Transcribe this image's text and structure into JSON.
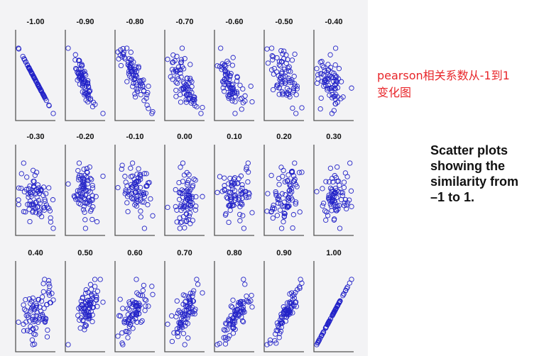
{
  "annotation": {
    "chinese_note_line1": "pearson相关系数从-1到1",
    "chinese_note_line2": "变化图"
  },
  "caption": {
    "line1": "Scatter plots",
    "line2": "showing the",
    "line3": "similarity from",
    "line4": "–1 to 1."
  },
  "colors": {
    "point": "#2424c8",
    "note": "#e8262a",
    "panel_background": "#f3f3f5"
  },
  "chart_data": {
    "type": "scatter",
    "layout": "small-multiples grid, 3 rows x 7 columns",
    "axes": "no tick labels",
    "point_marker": "open circle",
    "grid": false,
    "panels": [
      {
        "title": "-1.00",
        "correlation": -1.0
      },
      {
        "title": "-0.90",
        "correlation": -0.9
      },
      {
        "title": "-0.80",
        "correlation": -0.8
      },
      {
        "title": "-0.70",
        "correlation": -0.7
      },
      {
        "title": "-0.60",
        "correlation": -0.6
      },
      {
        "title": "-0.50",
        "correlation": -0.5
      },
      {
        "title": "-0.40",
        "correlation": -0.4
      },
      {
        "title": "-0.30",
        "correlation": -0.3
      },
      {
        "title": "-0.20",
        "correlation": -0.2
      },
      {
        "title": "-0.10",
        "correlation": -0.1
      },
      {
        "title": "0.00",
        "correlation": 0.0
      },
      {
        "title": "0.10",
        "correlation": 0.1
      },
      {
        "title": "0.20",
        "correlation": 0.2
      },
      {
        "title": "0.30",
        "correlation": 0.3
      },
      {
        "title": "0.40",
        "correlation": 0.4
      },
      {
        "title": "0.50",
        "correlation": 0.5
      },
      {
        "title": "0.60",
        "correlation": 0.6
      },
      {
        "title": "0.70",
        "correlation": 0.7
      },
      {
        "title": "0.80",
        "correlation": 0.8
      },
      {
        "title": "0.90",
        "correlation": 0.9
      },
      {
        "title": "1.00",
        "correlation": 1.0
      }
    ]
  }
}
